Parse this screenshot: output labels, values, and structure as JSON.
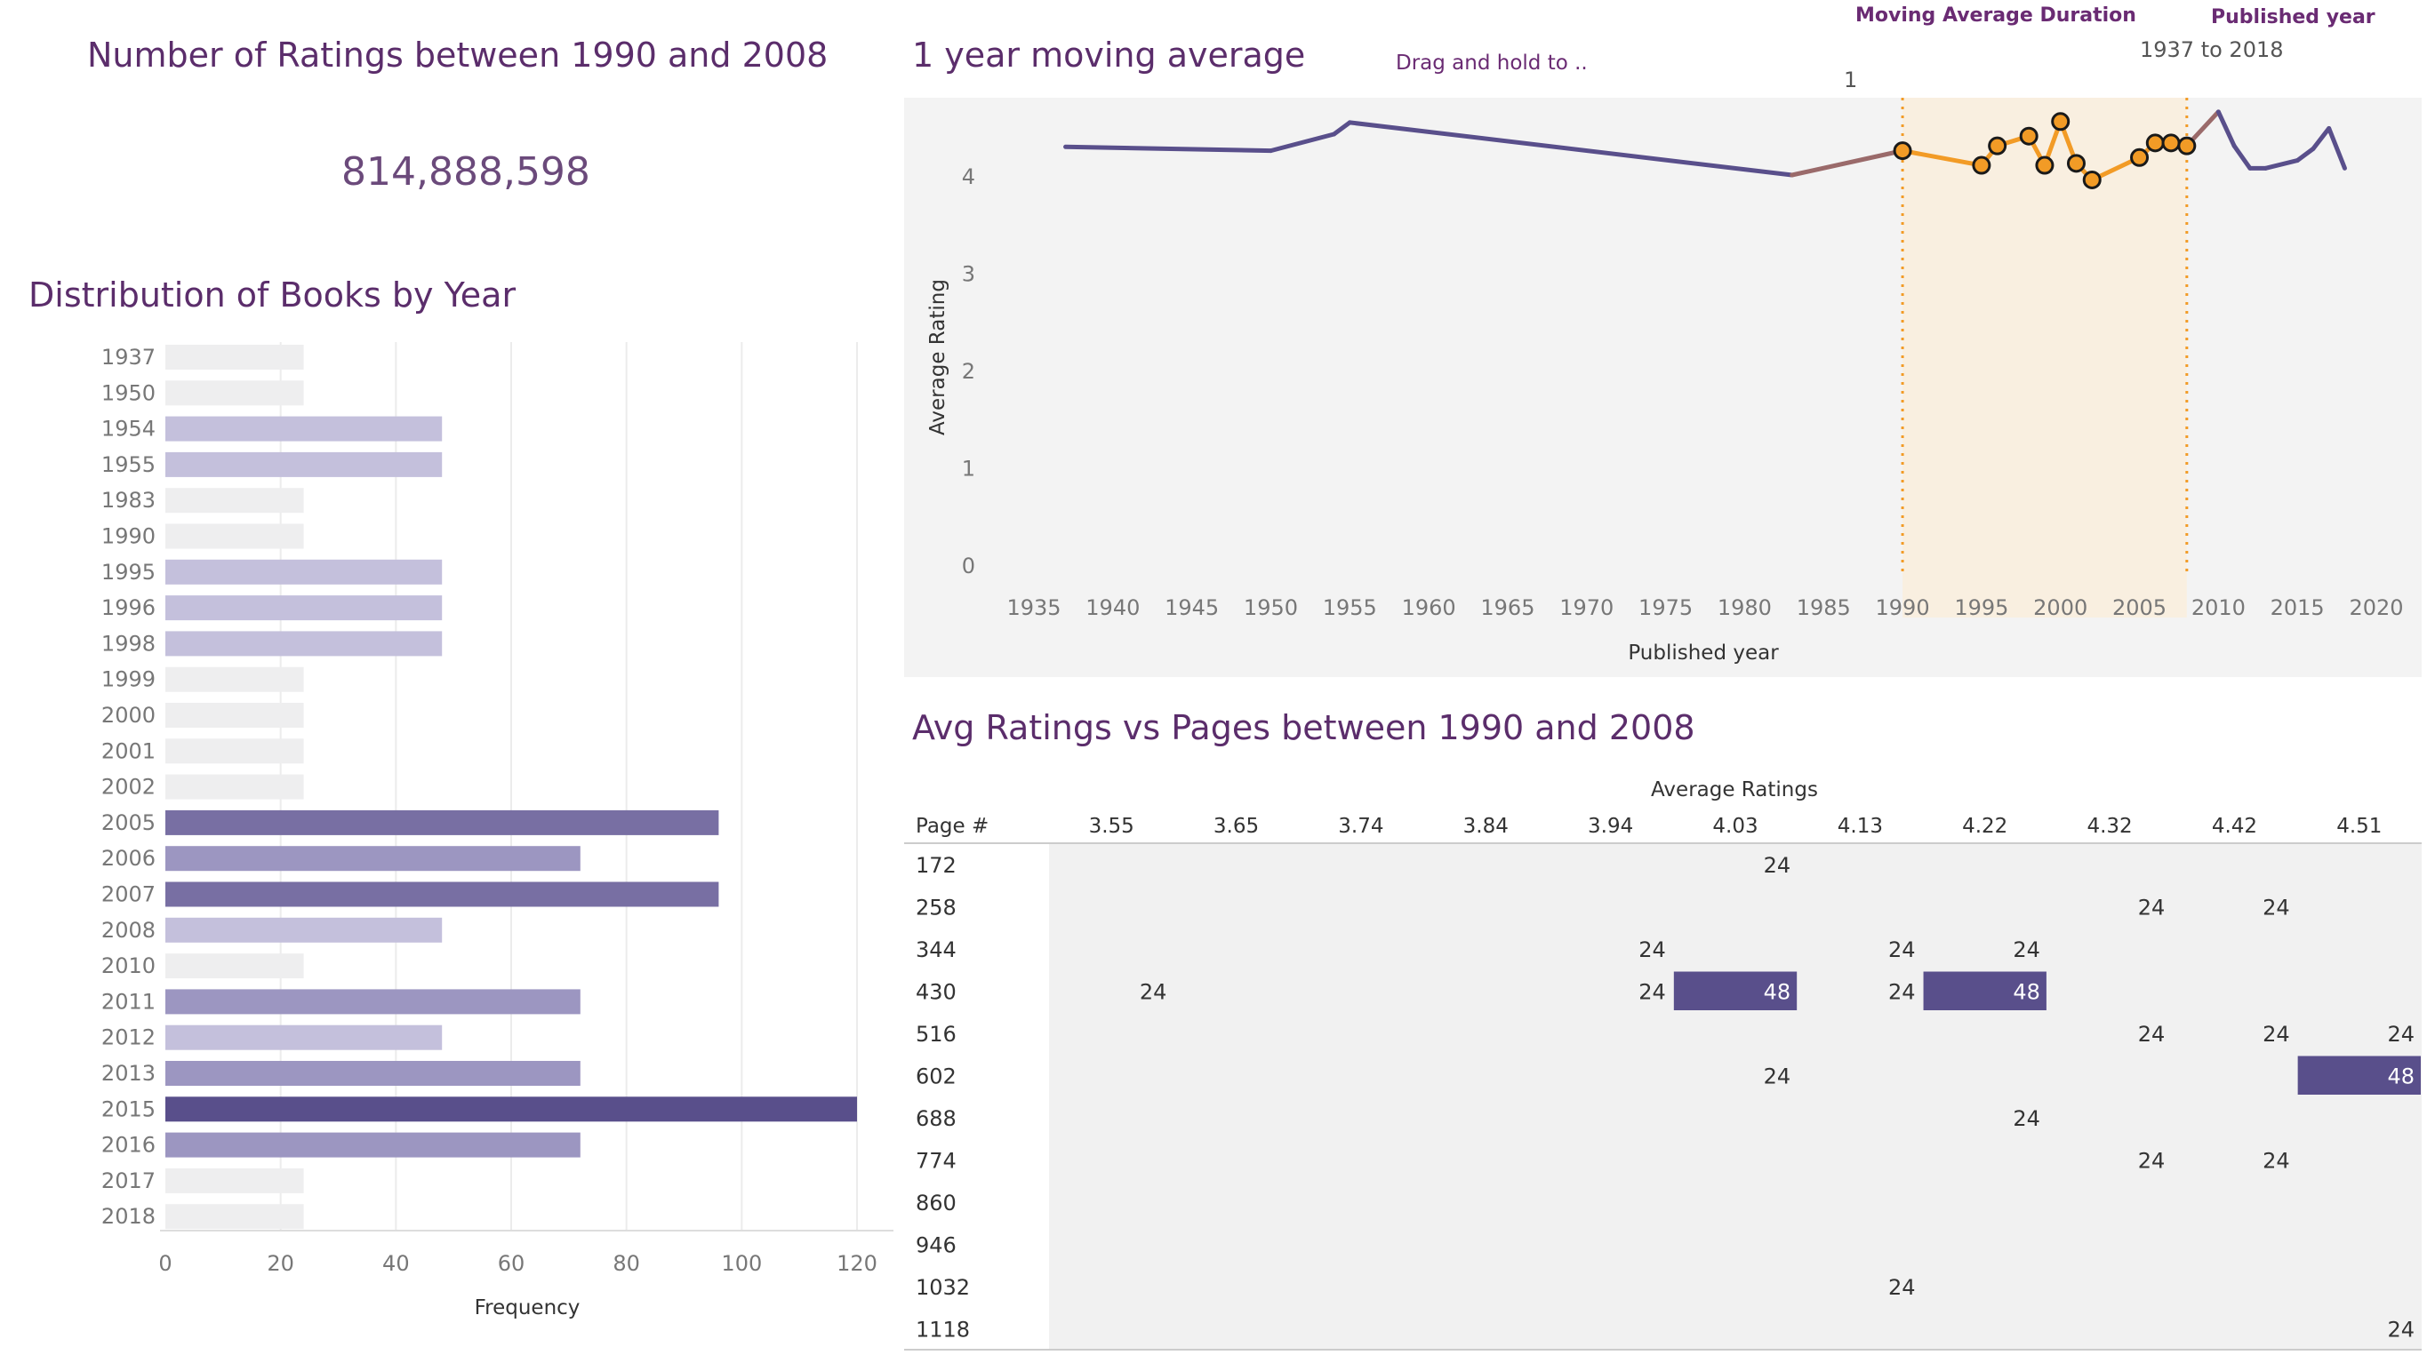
{
  "kpi": {
    "title": "Number of Ratings  between 1990 and 2008",
    "value": "814,888,598"
  },
  "controls": {
    "moving_average_label": "Moving Average Duration",
    "moving_average_value": "1",
    "published_year_label": "Published year",
    "published_year_value": "1937 to 2018",
    "drag_hint": "Drag and hold to .."
  },
  "colors": {
    "title": "#5b2d6b",
    "line": "#594f8b",
    "highlight": "#f29b26",
    "band": "#f9efe0",
    "panel_bg": "#f3f3f3"
  },
  "chart_data": [
    {
      "type": "bar",
      "title": "Distribution of Books by Year",
      "xlabel": "Frequency",
      "ylabel": "",
      "categories": [
        "1937",
        "1950",
        "1954",
        "1955",
        "1983",
        "1990",
        "1995",
        "1996",
        "1998",
        "1999",
        "2000",
        "2001",
        "2002",
        "2005",
        "2006",
        "2007",
        "2008",
        "2010",
        "2011",
        "2012",
        "2013",
        "2015",
        "2016",
        "2017",
        "2018"
      ],
      "values": [
        24,
        24,
        48,
        48,
        24,
        24,
        48,
        48,
        48,
        24,
        24,
        24,
        24,
        96,
        72,
        96,
        48,
        24,
        72,
        48,
        72,
        120,
        72,
        24,
        24
      ],
      "xticks": [
        0,
        20,
        40,
        60,
        80,
        100,
        120
      ],
      "xlim": [
        0,
        120
      ],
      "grid": true
    },
    {
      "type": "line",
      "title": "1 year moving average",
      "xlabel": "Published year",
      "ylabel": "Average Rating",
      "x": [
        1937,
        1950,
        1954,
        1955,
        1983,
        1990,
        1995,
        1996,
        1998,
        1999,
        2000,
        2001,
        2002,
        2005,
        2006,
        2007,
        2008,
        2010,
        2011,
        2012,
        2013,
        2015,
        2016,
        2017,
        2018
      ],
      "y": [
        4.29,
        4.25,
        4.42,
        4.54,
        4.0,
        4.25,
        4.1,
        4.3,
        4.4,
        4.1,
        4.55,
        4.12,
        3.95,
        4.18,
        4.33,
        4.33,
        4.3,
        4.65,
        4.3,
        4.07,
        4.07,
        4.15,
        4.27,
        4.48,
        4.07
      ],
      "xticks": [
        1935,
        1940,
        1945,
        1950,
        1955,
        1960,
        1965,
        1970,
        1975,
        1980,
        1985,
        1990,
        1995,
        2000,
        2005,
        2010,
        2015,
        2020
      ],
      "yticks": [
        0,
        1,
        2,
        3,
        4
      ],
      "xlim": [
        1932,
        2022
      ],
      "ylim": [
        0,
        4.95
      ],
      "highlight_range": [
        1990,
        2008
      ],
      "grid": false
    },
    {
      "type": "heatmap",
      "title": "Avg Ratings vs Pages between 1990 and 2008",
      "xlabel": "Average Ratings",
      "ylabel": "Page #",
      "columns": [
        "3.55",
        "3.65",
        "3.74",
        "3.84",
        "3.94",
        "4.03",
        "4.13",
        "4.22",
        "4.32",
        "4.42",
        "4.51"
      ],
      "rows": [
        "172",
        "258",
        "344",
        "430",
        "516",
        "602",
        "688",
        "774",
        "860",
        "946",
        "1032",
        "1118"
      ],
      "cells": [
        {
          "row": "172",
          "col": "4.03",
          "value": 24
        },
        {
          "row": "258",
          "col": "4.32",
          "value": 24
        },
        {
          "row": "258",
          "col": "4.42",
          "value": 24
        },
        {
          "row": "344",
          "col": "3.94",
          "value": 24
        },
        {
          "row": "344",
          "col": "4.13",
          "value": 24
        },
        {
          "row": "344",
          "col": "4.22",
          "value": 24
        },
        {
          "row": "430",
          "col": "3.55",
          "value": 24
        },
        {
          "row": "430",
          "col": "3.94",
          "value": 24
        },
        {
          "row": "430",
          "col": "4.03",
          "value": 48
        },
        {
          "row": "430",
          "col": "4.13",
          "value": 24
        },
        {
          "row": "430",
          "col": "4.22",
          "value": 48
        },
        {
          "row": "516",
          "col": "4.32",
          "value": 24
        },
        {
          "row": "516",
          "col": "4.42",
          "value": 24
        },
        {
          "row": "516",
          "col": "4.51",
          "value": 24
        },
        {
          "row": "602",
          "col": "4.03",
          "value": 24
        },
        {
          "row": "602",
          "col": "4.51",
          "value": 48
        },
        {
          "row": "688",
          "col": "4.22",
          "value": 24
        },
        {
          "row": "774",
          "col": "4.32",
          "value": 24
        },
        {
          "row": "774",
          "col": "4.42",
          "value": 24
        },
        {
          "row": "1032",
          "col": "4.13",
          "value": 24
        },
        {
          "row": "1118",
          "col": "4.51",
          "value": 24
        }
      ]
    }
  ]
}
